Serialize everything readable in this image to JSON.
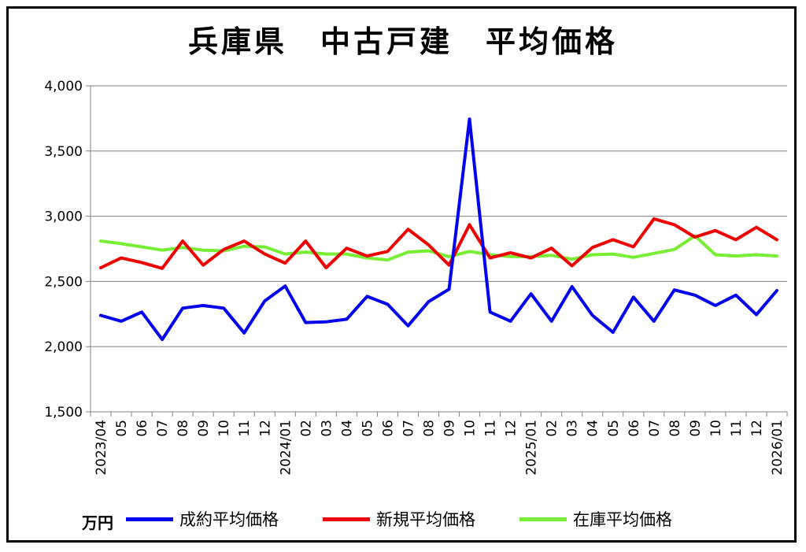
{
  "chart_data": {
    "type": "line",
    "title": "兵庫県　中古戸建　平均価格",
    "unit_label": "万円",
    "ylim": [
      1500,
      4000
    ],
    "y_ticks": [
      "1,500",
      "2,000",
      "2,500",
      "3,000",
      "3,500",
      "4,000"
    ],
    "y_tick_values": [
      1500,
      2000,
      2500,
      3000,
      3500,
      4000
    ],
    "x": [
      "2023/04",
      "05",
      "06",
      "07",
      "08",
      "09",
      "10",
      "11",
      "12",
      "2024/01",
      "02",
      "03",
      "04",
      "05",
      "06",
      "07",
      "08",
      "09",
      "10",
      "11",
      "12",
      "2025/01",
      "02",
      "03",
      "04",
      "05",
      "06",
      "07",
      "08",
      "09",
      "10",
      "11",
      "12",
      "2026/01"
    ],
    "grid": "horizontal",
    "legend_position": "bottom",
    "series": [
      {
        "name": "成約平均価格",
        "color": "#0000ee",
        "values": [
          2240,
          2195,
          2265,
          2055,
          2295,
          2315,
          2295,
          2105,
          2350,
          2465,
          2185,
          2190,
          2210,
          2385,
          2325,
          2160,
          2345,
          2440,
          3745,
          2265,
          2195,
          2405,
          2195,
          2460,
          2240,
          2110,
          2380,
          2195,
          2435,
          2395,
          2315,
          2395,
          2245,
          2430
        ]
      },
      {
        "name": "新規平均価格",
        "color": "#ee0000",
        "values": [
          2605,
          2680,
          2645,
          2600,
          2810,
          2625,
          2745,
          2810,
          2710,
          2640,
          2810,
          2605,
          2755,
          2695,
          2730,
          2900,
          2780,
          2625,
          2935,
          2680,
          2720,
          2680,
          2755,
          2620,
          2760,
          2820,
          2765,
          2980,
          2935,
          2840,
          2890,
          2820,
          2915,
          2820
        ]
      },
      {
        "name": "在庫平均価格",
        "color": "#77ee33",
        "values": [
          2810,
          2790,
          2765,
          2740,
          2760,
          2740,
          2735,
          2770,
          2765,
          2710,
          2725,
          2710,
          2710,
          2680,
          2665,
          2725,
          2735,
          2690,
          2730,
          2705,
          2690,
          2690,
          2700,
          2670,
          2705,
          2710,
          2685,
          2715,
          2745,
          2850,
          2705,
          2695,
          2705,
          2695
        ]
      }
    ]
  }
}
